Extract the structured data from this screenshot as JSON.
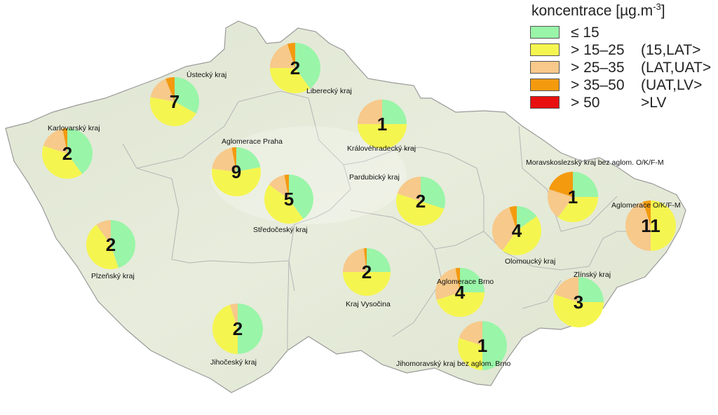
{
  "legend": {
    "title": "koncentrace [µg.m",
    "title_sup": "-3",
    "title_close": "]",
    "classes": [
      {
        "key": "c1",
        "range": "≤ 15",
        "label": "",
        "color": "#99f5a8"
      },
      {
        "key": "c2",
        "range": "> 15–25",
        "label": "(15,LAT>",
        "color": "#f5f550"
      },
      {
        "key": "c3",
        "range": "> 25–35",
        "label": "(LAT,UAT>",
        "color": "#f7c98a"
      },
      {
        "key": "c4",
        "range": "> 35–50",
        "label": "(UAT,LV>",
        "color": "#f39a0f"
      },
      {
        "key": "c5",
        "range": "> 50",
        "label": ">LV",
        "color": "#e80f0f"
      }
    ]
  },
  "regions": [
    {
      "id": "ustecky",
      "name": "Ústecký kraj",
      "count": "7",
      "shares": [
        0.33,
        0.45,
        0.16,
        0.06,
        0
      ]
    },
    {
      "id": "liberecky",
      "name": "Liberecký kraj",
      "count": "2",
      "shares": [
        0.4,
        0.35,
        0.2,
        0.05,
        0
      ]
    },
    {
      "id": "karlovarsky",
      "name": "Karlovarský kraj",
      "count": "2",
      "shares": [
        0.4,
        0.4,
        0.17,
        0.03,
        0
      ]
    },
    {
      "id": "kralovehradecky",
      "name": "Královéhradecký kraj",
      "count": "1",
      "shares": [
        0.25,
        0.5,
        0.25,
        0,
        0
      ]
    },
    {
      "id": "praha",
      "name": "Aglomerace Praha",
      "count": "9",
      "shares": [
        0.22,
        0.55,
        0.2,
        0.03,
        0
      ]
    },
    {
      "id": "stredocesky",
      "name": "Středočeský kraj",
      "count": "5",
      "shares": [
        0.4,
        0.45,
        0.12,
        0.03,
        0
      ]
    },
    {
      "id": "pardubicky",
      "name": "Pardubický kraj",
      "count": "2",
      "shares": [
        0.3,
        0.5,
        0.2,
        0,
        0
      ]
    },
    {
      "id": "moravskoslezsky",
      "name": "Moravskoslezský kraj bez aglom. O/K/F-M",
      "count": "1",
      "shares": [
        0.25,
        0.35,
        0.2,
        0.2,
        0
      ]
    },
    {
      "id": "aglom-ostrava",
      "name": "Aglomerace O/K/F-M",
      "count": "11",
      "shares": [
        0,
        0.5,
        0.45,
        0.05,
        0
      ]
    },
    {
      "id": "olomoucky",
      "name": "Olomoucký kraj",
      "count": "4",
      "shares": [
        0.15,
        0.45,
        0.35,
        0.05,
        0
      ]
    },
    {
      "id": "plzensky",
      "name": "Plzeňský kraj",
      "count": "2",
      "shares": [
        0.45,
        0.45,
        0.1,
        0,
        0
      ]
    },
    {
      "id": "vysocina",
      "name": "Kraj Vysočina",
      "count": "2",
      "shares": [
        0.25,
        0.5,
        0.23,
        0.02,
        0
      ]
    },
    {
      "id": "aglom-brno",
      "name": "Aglomerace Brno",
      "count": "4",
      "shares": [
        0.25,
        0.45,
        0.27,
        0.03,
        0
      ]
    },
    {
      "id": "zlinsky",
      "name": "Zlínský kraj",
      "count": "3",
      "shares": [
        0.25,
        0.55,
        0.2,
        0,
        0
      ]
    },
    {
      "id": "jihocesky",
      "name": "Jihočeský kraj",
      "count": "2",
      "shares": [
        0.5,
        0.45,
        0.05,
        0,
        0
      ]
    },
    {
      "id": "jihomoravsky",
      "name": "Jihomoravský kraj bez aglom. Brno",
      "count": "1",
      "shares": [
        0.5,
        0.3,
        0.2,
        0,
        0
      ]
    }
  ]
}
